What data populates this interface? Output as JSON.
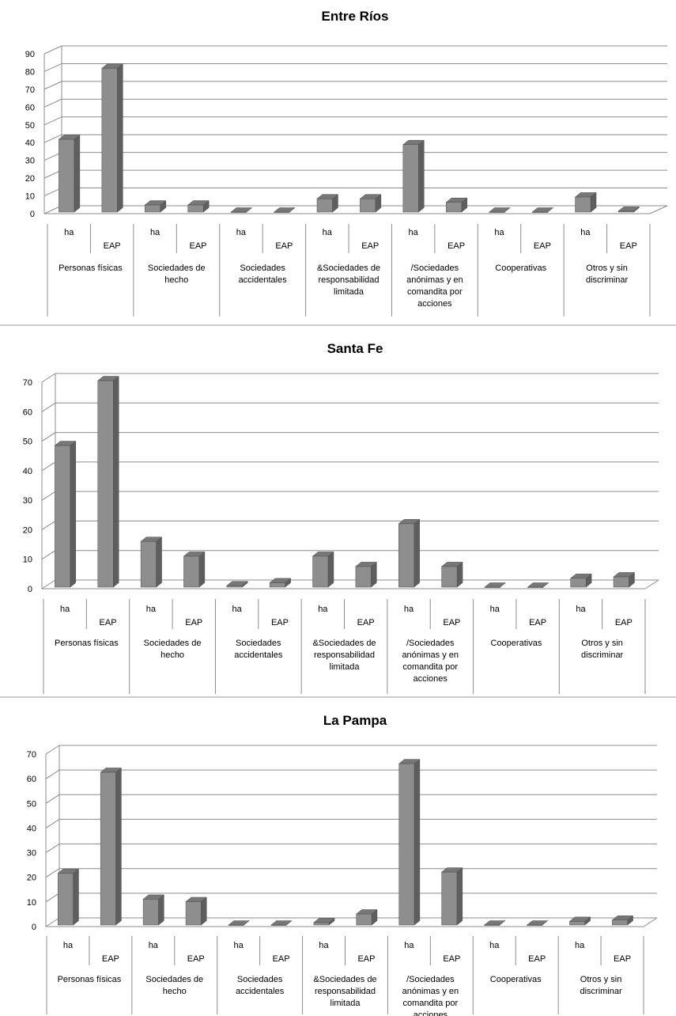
{
  "chart_data": [
    {
      "type": "bar",
      "title": "Entre Ríos",
      "categories": [
        "Personas físicas",
        "Sociedades de hecho",
        "Sociedades accidentales",
        "&Sociedades de responsabilidad limitada",
        "/Sociedades anónimas y en comandita por acciones",
        "Cooperativas",
        "Otros y sin discriminar"
      ],
      "category_lines": [
        [
          "Personas físicas"
        ],
        [
          "Sociedades de",
          "hecho"
        ],
        [
          "Sociedades",
          "accidentales"
        ],
        [
          "&Sociedades de",
          "responsabilidad",
          "limitada"
        ],
        [
          "/Sociedades",
          "anónimas y en",
          "comandita por",
          "acciones"
        ],
        [
          "Cooperativas"
        ],
        [
          "Otros y sin",
          "discriminar"
        ]
      ],
      "sub_labels": [
        "ha",
        "EAP"
      ],
      "values": [
        [
          41,
          81
        ],
        [
          4,
          4
        ],
        [
          0,
          0
        ],
        [
          7.5,
          7.5
        ],
        [
          38,
          5.5
        ],
        [
          0,
          0
        ],
        [
          8.5,
          0.5
        ]
      ],
      "ylim": [
        0,
        90
      ],
      "yticks": [
        0,
        10,
        20,
        30,
        40,
        50,
        60,
        70,
        80,
        90
      ],
      "grid": true,
      "legend": "none",
      "colors": {
        "bar_front": "#8e8e8e",
        "bar_side": "#5e5e5e",
        "bar_top": "#777777",
        "grid": "#8c8c8c"
      }
    },
    {
      "type": "bar",
      "title": "Santa Fe",
      "categories": [
        "Personas físicas",
        "Sociedades de hecho",
        "Sociedades accidentales",
        "&Sociedades de responsabilidad limitada",
        "/Sociedades anónimas y en comandita por acciones",
        "Cooperativas",
        "Otros y sin discriminar"
      ],
      "category_lines": [
        [
          "Personas físicas"
        ],
        [
          "Sociedades de",
          "hecho"
        ],
        [
          "Sociedades",
          "accidentales"
        ],
        [
          "&Sociedades de",
          "responsabilidad",
          "limitada"
        ],
        [
          "/Sociedades",
          "anónimas y en",
          "comandita por",
          "acciones"
        ],
        [
          "Cooperativas"
        ],
        [
          "Otros y sin",
          "discriminar"
        ]
      ],
      "sub_labels": [
        "ha",
        "EAP"
      ],
      "values": [
        [
          48,
          70
        ],
        [
          15.5,
          10.5
        ],
        [
          0.5,
          1.5
        ],
        [
          10.5,
          7
        ],
        [
          21.5,
          7
        ],
        [
          0,
          0
        ],
        [
          3,
          3.5
        ]
      ],
      "ylim": [
        0,
        70
      ],
      "yticks": [
        0,
        10,
        20,
        30,
        40,
        50,
        60,
        70
      ],
      "grid": true,
      "legend": "none",
      "colors": {
        "bar_front": "#8e8e8e",
        "bar_side": "#5e5e5e",
        "bar_top": "#777777",
        "grid": "#8c8c8c"
      }
    },
    {
      "type": "bar",
      "title": "La Pampa",
      "categories": [
        "Personas físicas",
        "Sociedades de hecho",
        "Sociedades accidentales",
        "&Sociedades de responsabilidad limitada",
        "/Sociedades anónimas y en comandita por acciones",
        "Cooperativas",
        "Otros y sin discriminar"
      ],
      "category_lines": [
        [
          "Personas físicas"
        ],
        [
          "Sociedades de",
          "hecho"
        ],
        [
          "Sociedades",
          "accidentales"
        ],
        [
          "&Sociedades de",
          "responsabilidad",
          "limitada"
        ],
        [
          "/Sociedades",
          "anónimas y en",
          "comandita por",
          "acciones"
        ],
        [
          "Cooperativas"
        ],
        [
          "Otros y sin",
          "discriminar"
        ]
      ],
      "sub_labels": [
        "ha",
        "EAP"
      ],
      "values": [
        [
          21,
          62
        ],
        [
          10.5,
          9.5
        ],
        [
          0,
          0
        ],
        [
          1,
          4.5
        ],
        [
          65.5,
          21.5
        ],
        [
          0,
          0
        ],
        [
          1.5,
          2
        ]
      ],
      "ylim": [
        0,
        70
      ],
      "yticks": [
        0,
        10,
        20,
        30,
        40,
        50,
        60,
        70
      ],
      "grid": true,
      "legend": "none",
      "colors": {
        "bar_front": "#8e8e8e",
        "bar_side": "#5e5e5e",
        "bar_top": "#777777",
        "grid": "#8c8c8c"
      }
    }
  ]
}
